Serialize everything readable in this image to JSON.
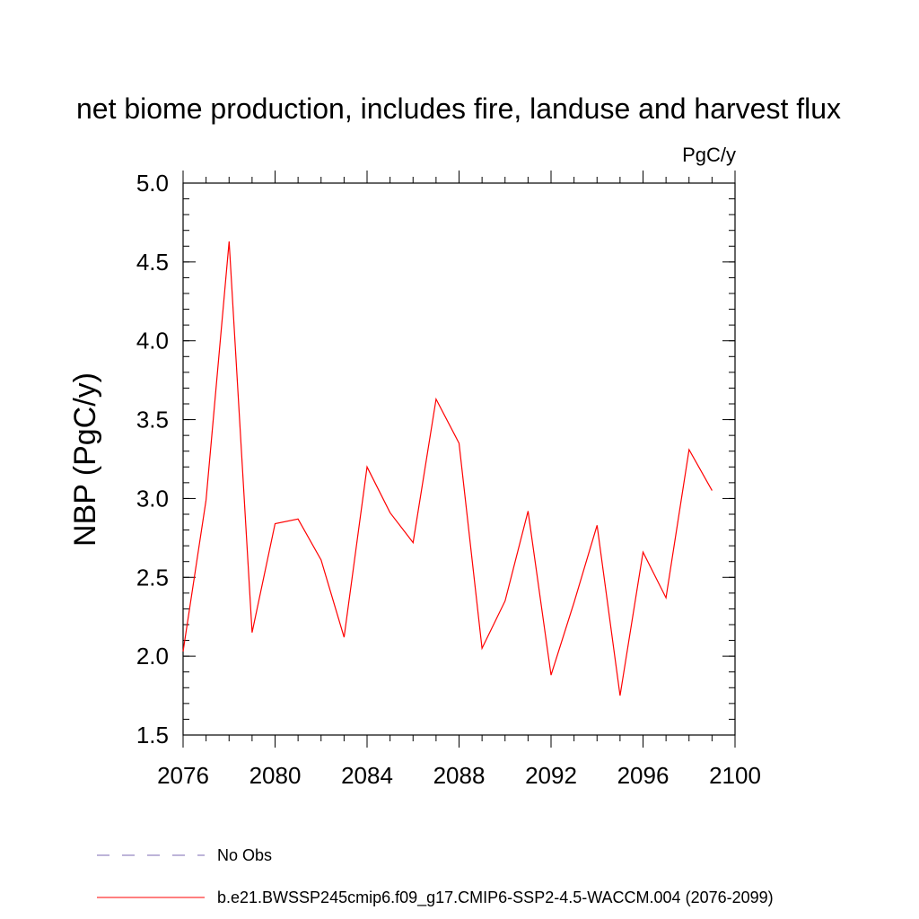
{
  "chart_data": {
    "type": "line",
    "title": "net biome production, includes fire, landuse and harvest flux",
    "units_label": "PgC/y",
    "xlabel": "",
    "ylabel": "NBP  (PgC/y)",
    "xlim": [
      2076,
      2100
    ],
    "ylim": [
      1.5,
      5.0
    ],
    "x_ticks": [
      "2076",
      "2080",
      "2084",
      "2088",
      "2092",
      "2096",
      "2100"
    ],
    "y_ticks": [
      "1.5",
      "2.0",
      "2.5",
      "3.0",
      "3.5",
      "4.0",
      "4.5",
      "5.0"
    ],
    "grid": false,
    "legend_position": "bottom",
    "series": [
      {
        "name": "b.e21.BWSSP245cmip6.f09_g17.CMIP6-SSP2-4.5-WACCM.004 (2076-2099)",
        "color": "#ff0000",
        "style": "solid",
        "x": [
          2076,
          2077,
          2078,
          2079,
          2080,
          2081,
          2082,
          2083,
          2084,
          2085,
          2086,
          2087,
          2088,
          2089,
          2090,
          2091,
          2092,
          2093,
          2094,
          2095,
          2096,
          2097,
          2098,
          2099
        ],
        "values": [
          2.03,
          2.99,
          4.63,
          2.15,
          2.84,
          2.87,
          2.61,
          2.12,
          3.2,
          2.91,
          2.72,
          3.63,
          3.35,
          2.05,
          2.35,
          2.92,
          1.88,
          2.34,
          2.83,
          1.75,
          2.66,
          2.37,
          3.31,
          3.05
        ]
      }
    ],
    "legend": [
      {
        "label": "No Obs",
        "color": "#7b68b3",
        "style": "dashed"
      },
      {
        "label": "b.e21.BWSSP245cmip6.f09_g17.CMIP6-SSP2-4.5-WACCM.004 (2076-2099)",
        "color": "#ff0000",
        "style": "solid"
      }
    ]
  }
}
